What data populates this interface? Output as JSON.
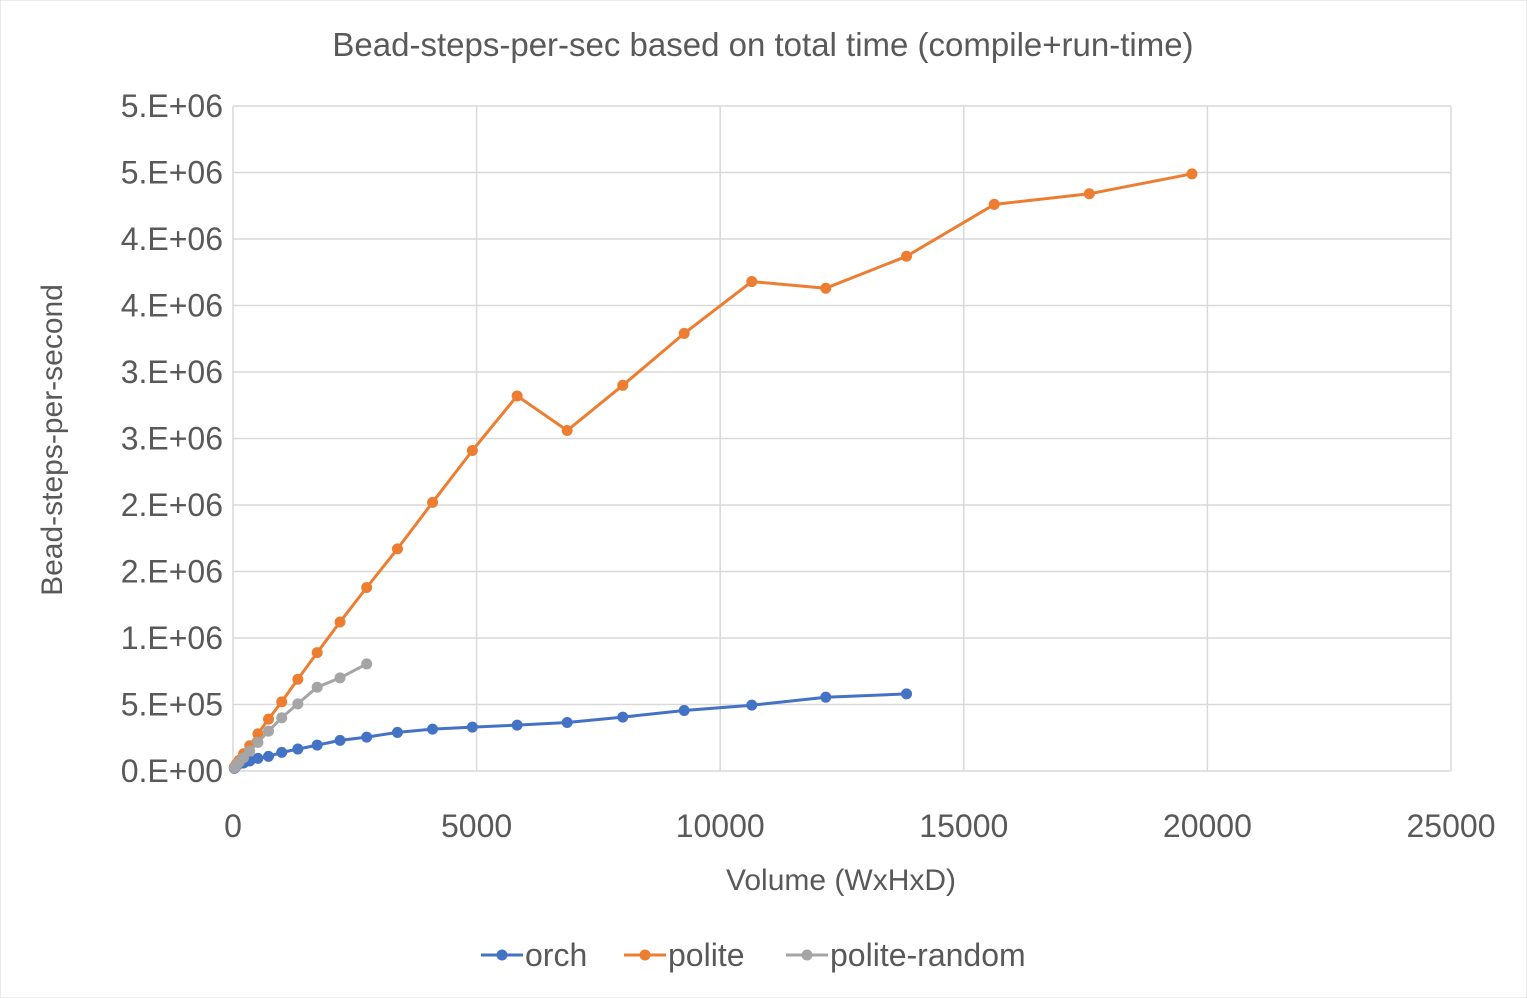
{
  "chart_data": {
    "type": "line",
    "title": "Bead-steps-per-sec based on total time (compile+run-time)",
    "xlabel": "Volume (WxHxD)",
    "ylabel": "Bead-steps-per-second",
    "xlim": [
      0,
      25000
    ],
    "ylim": [
      0,
      5000000
    ],
    "x_ticks": [
      0,
      5000,
      10000,
      15000,
      20000,
      25000
    ],
    "x_tick_labels": [
      "0",
      "5000",
      "10000",
      "15000",
      "20000",
      "25000"
    ],
    "y_ticks": [
      0,
      500000,
      1000000,
      1500000,
      2000000,
      2500000,
      3000000,
      3500000,
      4000000,
      4500000,
      5000000
    ],
    "y_tick_labels": [
      "0.E+00",
      "5.E+05",
      "1.E+06",
      "2.E+06",
      "2.E+06",
      "3.E+06",
      "3.E+06",
      "4.E+06",
      "4.E+06",
      "5.E+06",
      "5.E+06"
    ],
    "grid": true,
    "legend_position": "bottom",
    "series": [
      {
        "name": "orch",
        "color": "#4472c4",
        "points": [
          [
            27,
            20000
          ],
          [
            64,
            35000
          ],
          [
            125,
            55000
          ],
          [
            216,
            60000
          ],
          [
            343,
            75000
          ],
          [
            512,
            95000
          ],
          [
            729,
            110000
          ],
          [
            1000,
            140000
          ],
          [
            1331,
            165000
          ],
          [
            1728,
            195000
          ],
          [
            2197,
            230000
          ],
          [
            2744,
            255000
          ],
          [
            3375,
            290000
          ],
          [
            4096,
            315000
          ],
          [
            4913,
            330000
          ],
          [
            5832,
            345000
          ],
          [
            6859,
            365000
          ],
          [
            8000,
            405000
          ],
          [
            9261,
            455000
          ],
          [
            10648,
            495000
          ],
          [
            12167,
            555000
          ],
          [
            13824,
            580000
          ]
        ]
      },
      {
        "name": "polite",
        "color": "#ed7d31",
        "points": [
          [
            27,
            30000
          ],
          [
            64,
            50000
          ],
          [
            125,
            80000
          ],
          [
            216,
            130000
          ],
          [
            343,
            190000
          ],
          [
            512,
            280000
          ],
          [
            729,
            390000
          ],
          [
            1000,
            520000
          ],
          [
            1331,
            690000
          ],
          [
            1728,
            890000
          ],
          [
            2197,
            1120000
          ],
          [
            2744,
            1380000
          ],
          [
            3375,
            1670000
          ],
          [
            4096,
            2020000
          ],
          [
            4913,
            2410000
          ],
          [
            5832,
            2820000
          ],
          [
            6859,
            2560000
          ],
          [
            8000,
            2900000
          ],
          [
            9261,
            3290000
          ],
          [
            10648,
            3680000
          ],
          [
            12167,
            3630000
          ],
          [
            13824,
            3870000
          ],
          [
            15625,
            4260000
          ],
          [
            17576,
            4340000
          ],
          [
            19683,
            4490000
          ]
        ]
      },
      {
        "name": "polite-random",
        "color": "#a5a5a5",
        "points": [
          [
            27,
            25000
          ],
          [
            64,
            40000
          ],
          [
            125,
            65000
          ],
          [
            216,
            100000
          ],
          [
            343,
            150000
          ],
          [
            512,
            215000
          ],
          [
            729,
            300000
          ],
          [
            1000,
            400000
          ],
          [
            1331,
            505000
          ],
          [
            1728,
            630000
          ],
          [
            2197,
            700000
          ],
          [
            2744,
            805000
          ]
        ]
      }
    ]
  }
}
